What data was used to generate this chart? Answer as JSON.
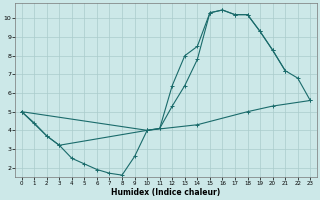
{
  "xlabel": "Humidex (Indice chaleur)",
  "bg_color": "#cce8e8",
  "grid_color": "#aacccc",
  "line_color": "#1a6b6b",
  "xlim": [
    -0.5,
    23.5
  ],
  "ylim": [
    1.5,
    10.8
  ],
  "xticks": [
    0,
    1,
    2,
    3,
    4,
    5,
    6,
    7,
    8,
    9,
    10,
    11,
    12,
    13,
    14,
    15,
    16,
    17,
    18,
    19,
    20,
    21,
    22,
    23
  ],
  "yticks": [
    2,
    3,
    4,
    5,
    6,
    7,
    8,
    9,
    10
  ],
  "line1_x": [
    0,
    1,
    2,
    3,
    4,
    5,
    6,
    7,
    8,
    9,
    10,
    11,
    12,
    13,
    14,
    15,
    16,
    17,
    18,
    19,
    20,
    21
  ],
  "line1_y": [
    5,
    4.4,
    3.7,
    3.2,
    2.5,
    2.2,
    1.9,
    1.7,
    1.6,
    2.6,
    4.0,
    4.1,
    6.4,
    8.0,
    8.5,
    10.3,
    10.45,
    10.2,
    10.2,
    9.3,
    8.3,
    7.2
  ],
  "line2_x": [
    0,
    10,
    11,
    12,
    13,
    14,
    15,
    16,
    17,
    18,
    19,
    20,
    21,
    22,
    23
  ],
  "line2_y": [
    5,
    4.0,
    4.1,
    5.3,
    6.4,
    7.8,
    10.3,
    10.45,
    10.2,
    10.2,
    9.3,
    8.3,
    7.2,
    6.8,
    5.6
  ],
  "line3_x": [
    0,
    2,
    3,
    10,
    14,
    18,
    20,
    23
  ],
  "line3_y": [
    5,
    3.7,
    3.2,
    4.0,
    4.3,
    5.0,
    5.3,
    5.6
  ]
}
